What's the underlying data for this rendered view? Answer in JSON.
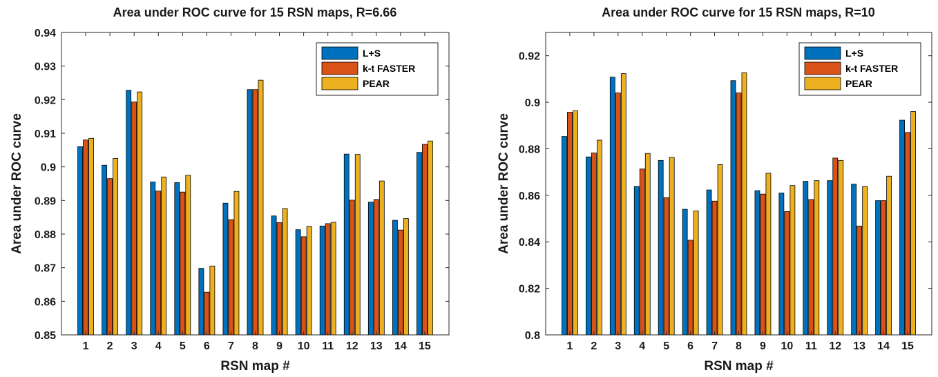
{
  "chart_data": [
    {
      "type": "bar",
      "title": "Area under ROC curve for 15 RSN maps, R=6.66",
      "xlabel": "RSN map #",
      "ylabel": "Area under ROC curve",
      "ylim": [
        0.85,
        0.94
      ],
      "yticks": [
        0.85,
        0.86,
        0.87,
        0.88,
        0.89,
        0.9,
        0.91,
        0.92,
        0.93,
        0.94
      ],
      "ytick_labels": [
        "0.85",
        "0.86",
        "0.87",
        "0.88",
        "0.89",
        "0.9",
        "0.91",
        "0.92",
        "0.93",
        "0.94"
      ],
      "categories": [
        "1",
        "2",
        "3",
        "4",
        "5",
        "6",
        "7",
        "8",
        "9",
        "10",
        "11",
        "12",
        "13",
        "14",
        "15"
      ],
      "legend_position": "top-right",
      "series": [
        {
          "name": "L+S",
          "color": "#0072BD",
          "values": [
            0.906,
            0.9005,
            0.9228,
            0.8955,
            0.8953,
            0.8698,
            0.8892,
            0.923,
            0.8854,
            0.8813,
            0.8824,
            0.9038,
            0.8895,
            0.8841,
            0.9043
          ]
        },
        {
          "name": "k-t FASTER",
          "color": "#D95319",
          "values": [
            0.908,
            0.8965,
            0.9193,
            0.8928,
            0.8925,
            0.8627,
            0.8843,
            0.923,
            0.8834,
            0.8792,
            0.8831,
            0.8901,
            0.8903,
            0.8812,
            0.9067
          ]
        },
        {
          "name": "PEAR",
          "color": "#EDB120",
          "values": [
            0.9085,
            0.9025,
            0.9223,
            0.897,
            0.8975,
            0.8705,
            0.8927,
            0.9258,
            0.8876,
            0.8823,
            0.8835,
            0.9037,
            0.8958,
            0.8846,
            0.9077
          ]
        }
      ]
    },
    {
      "type": "bar",
      "title": "Area under ROC curve for 15 RSN maps, R=10",
      "xlabel": "RSN map #",
      "ylabel": "Area under ROC curve",
      "ylim": [
        0.8,
        0.93
      ],
      "yticks": [
        0.8,
        0.82,
        0.84,
        0.86,
        0.88,
        0.9,
        0.92
      ],
      "ytick_labels": [
        "0.8",
        "0.82",
        "0.84",
        "0.86",
        "0.88",
        "0.9",
        "0.92"
      ],
      "categories": [
        "1",
        "2",
        "3",
        "4",
        "5",
        "6",
        "7",
        "8",
        "9",
        "10",
        "11",
        "12",
        "13",
        "14",
        "15"
      ],
      "legend_position": "top-right",
      "series": [
        {
          "name": "L+S",
          "color": "#0072BD",
          "values": [
            0.8853,
            0.8765,
            0.9108,
            0.8638,
            0.875,
            0.854,
            0.8623,
            0.9093,
            0.862,
            0.861,
            0.866,
            0.8663,
            0.8648,
            0.8577,
            0.8923
          ]
        },
        {
          "name": "k-t FASTER",
          "color": "#D95319",
          "values": [
            0.8957,
            0.8782,
            0.904,
            0.8713,
            0.859,
            0.8407,
            0.8575,
            0.904,
            0.8605,
            0.853,
            0.8582,
            0.876,
            0.8468,
            0.8577,
            0.887
          ]
        },
        {
          "name": "PEAR",
          "color": "#EDB120",
          "values": [
            0.8963,
            0.8837,
            0.9123,
            0.878,
            0.8763,
            0.8533,
            0.8732,
            0.9127,
            0.8695,
            0.8642,
            0.8663,
            0.875,
            0.8638,
            0.8682,
            0.896
          ]
        }
      ]
    }
  ]
}
